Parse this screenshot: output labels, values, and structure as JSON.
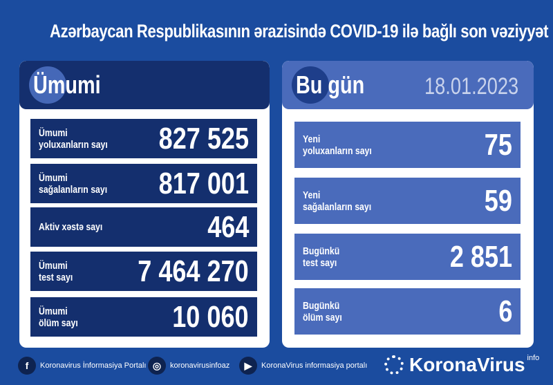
{
  "title": "Azərbaycan Respublikasının ərazisində COVID-19 ilə bağlı son vəziyyət",
  "total": {
    "heading": "Ümumi",
    "rows": [
      {
        "label": "Ümumi\nyoluxanların sayı",
        "value": "827 525"
      },
      {
        "label": "Ümumi\nsağalanların sayı",
        "value": "817 001"
      },
      {
        "label": "Aktiv xəstə sayı",
        "value": "464"
      },
      {
        "label": "Ümumi\ntest sayı",
        "value": "7 464 270"
      },
      {
        "label": "Ümumi\nölüm sayı",
        "value": "10 060"
      }
    ]
  },
  "today": {
    "heading": "Bu gün",
    "date": "18.01.2023",
    "rows": [
      {
        "label": "Yeni\nyoluxanların sayı",
        "value": "75"
      },
      {
        "label": "Yeni\nsağalanların sayı",
        "value": "59"
      },
      {
        "label": "Bugünkü\ntest sayı",
        "value": "2 851"
      },
      {
        "label": "Bugünkü\nölüm sayı",
        "value": "6"
      }
    ]
  },
  "footer": {
    "facebook": "Koronavirus İnformasiya Portalı",
    "instagram": "koronavirusinfoaz",
    "youtube": "KoronaVirus informasiya portalı",
    "brand": "KoronaVirus",
    "brand_sup": "info"
  },
  "colors": {
    "background": "#1b4c9f",
    "dark_panel": "#142f6e",
    "light_panel": "#4a6bbb"
  }
}
